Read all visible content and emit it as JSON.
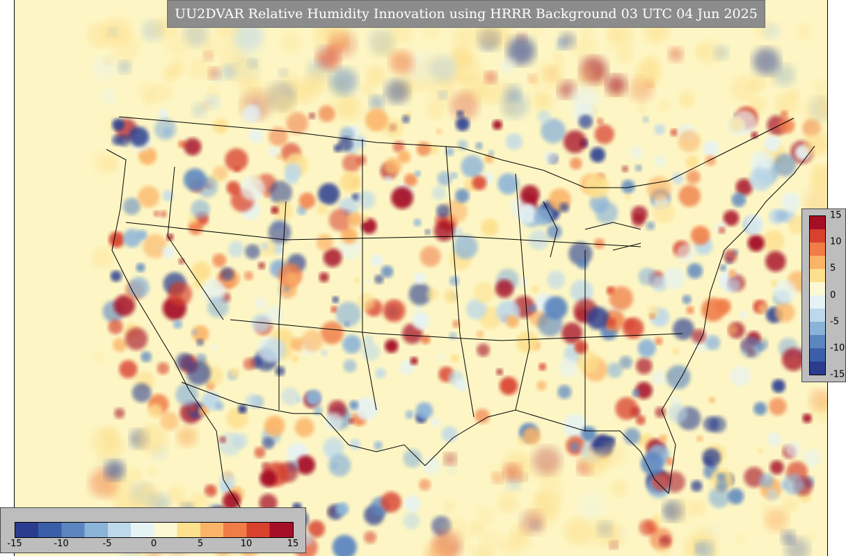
{
  "title": "UU2DVAR Relative Humidity Innovation using HRRR Background 03 UTC 04 Jun 2025",
  "colorbar": {
    "ticks_vertical": [
      "15",
      "10",
      "5",
      "0",
      "-5",
      "-10",
      "-15"
    ],
    "ticks_horizontal": [
      "-15",
      "-10",
      "-5",
      "0",
      "5",
      "10",
      "15"
    ],
    "range": [
      -15,
      15
    ],
    "colors": [
      "#2b3c8f",
      "#3a5fa8",
      "#5b86c0",
      "#8bb3d8",
      "#bcd8ea",
      "#e6f3f4",
      "#fbf9d3",
      "#fde08e",
      "#fbb467",
      "#f07c47",
      "#d8412d",
      "#a50f26"
    ]
  },
  "map": {
    "background_color": "#fdf6c4",
    "field_palette": [
      "#a50f26",
      "#d8412d",
      "#f07c47",
      "#fbb467",
      "#fde08e",
      "#e6f3f4",
      "#bcd8ea",
      "#8bb3d8",
      "#5b86c0",
      "#2b3c8f"
    ]
  }
}
